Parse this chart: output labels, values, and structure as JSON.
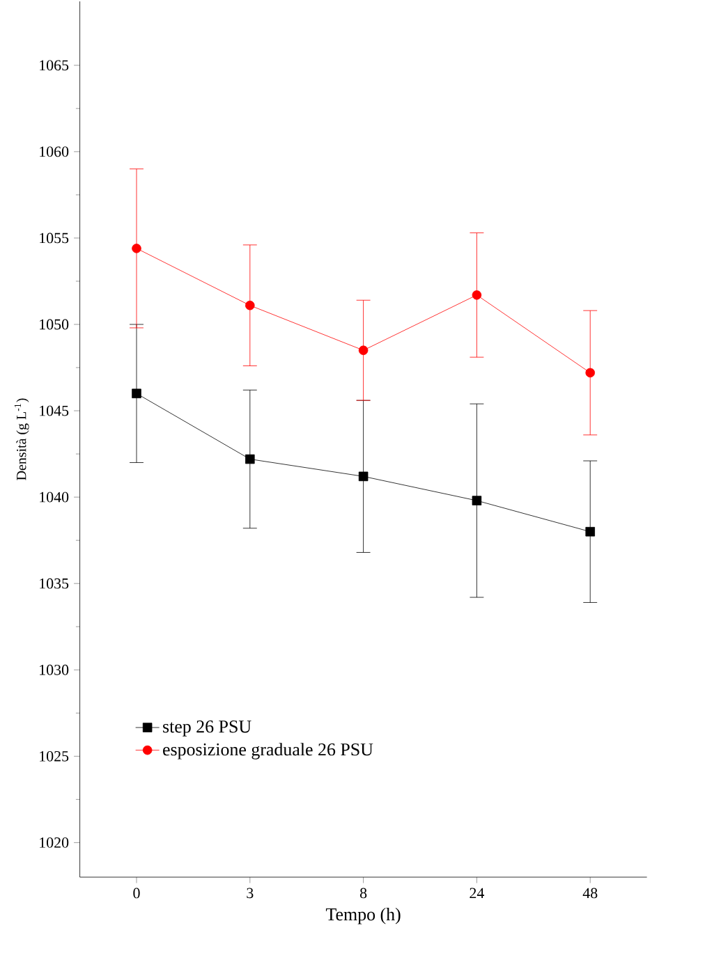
{
  "chart_data": {
    "type": "line",
    "xlabel": "Tempo (h)",
    "ylabel": "Densità (g L$^{-1}$)",
    "categories": [
      "0",
      "3",
      "8",
      "24",
      "48"
    ],
    "series": [
      {
        "name": "step 26 PSU",
        "color": "#000000",
        "marker": "square",
        "values": [
          1046,
          1042.2,
          1041.2,
          1039.8,
          1038
        ],
        "errors": [
          4,
          4,
          4.4,
          5.6,
          4.1
        ]
      },
      {
        "name": "esposizione graduale 26 PSU",
        "color": "#ff0000",
        "marker": "circle",
        "values": [
          1054.4,
          1051.1,
          1048.5,
          1051.7,
          1047.2
        ],
        "errors": [
          4.6,
          3.5,
          2.9,
          3.6,
          3.6
        ]
      }
    ],
    "ylim": [
      1018,
      1068.7
    ],
    "yticks": [
      1020,
      1025,
      1030,
      1035,
      1040,
      1045,
      1050,
      1055,
      1060,
      1065
    ],
    "grid": false,
    "legend": "bottom left",
    "line_style": "solid"
  }
}
